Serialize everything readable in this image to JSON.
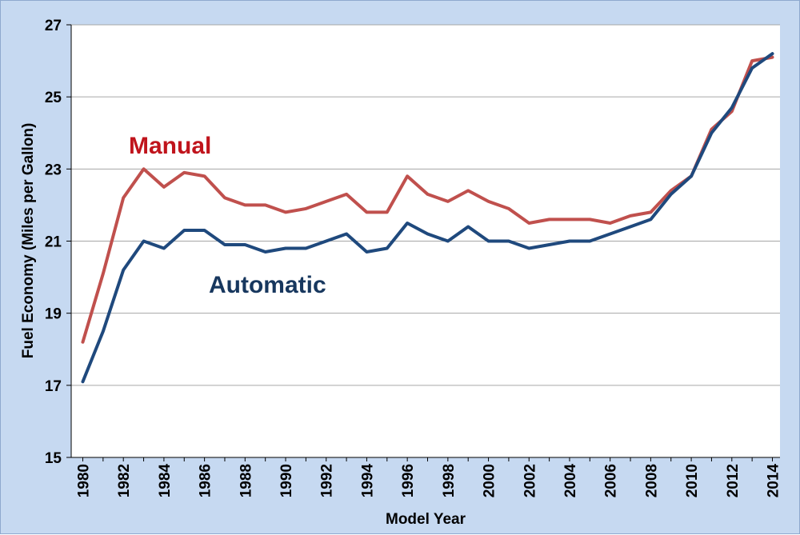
{
  "chart_data": {
    "type": "line",
    "title": "",
    "xlabel": "Model Year",
    "ylabel": "Fuel Economy (Miles per Gallon)",
    "ylim": [
      15,
      27
    ],
    "yticks": [
      "15",
      "17",
      "19",
      "21",
      "23",
      "25",
      "27"
    ],
    "xlim": [
      1980,
      2014
    ],
    "xticks": [
      "1980",
      "1982",
      "1984",
      "1986",
      "1988",
      "1990",
      "1992",
      "1994",
      "1996",
      "1998",
      "2000",
      "2002",
      "2004",
      "2006",
      "2008",
      "2010",
      "2012",
      "2014"
    ],
    "grid": true,
    "x": [
      1980,
      1981,
      1982,
      1983,
      1984,
      1985,
      1986,
      1987,
      1988,
      1989,
      1990,
      1991,
      1992,
      1993,
      1994,
      1995,
      1996,
      1997,
      1998,
      1999,
      2000,
      2001,
      2002,
      2003,
      2004,
      2005,
      2006,
      2007,
      2008,
      2009,
      2010,
      2011,
      2012,
      2013,
      2014
    ],
    "series": [
      {
        "name": "Manual",
        "color": "#c0504d",
        "label_color": "#c0141c",
        "values": [
          18.2,
          20.1,
          22.2,
          23.0,
          22.5,
          22.9,
          22.8,
          22.2,
          22.0,
          22.0,
          21.8,
          21.9,
          22.1,
          22.3,
          21.8,
          21.8,
          22.8,
          22.3,
          22.1,
          22.4,
          22.1,
          21.9,
          21.5,
          21.6,
          21.6,
          21.6,
          21.5,
          21.7,
          21.8,
          22.4,
          22.8,
          24.1,
          24.6,
          26.0,
          26.1
        ]
      },
      {
        "name": "Automatic",
        "color": "#1f497d",
        "label_color": "#17375e",
        "values": [
          17.1,
          18.5,
          20.2,
          21.0,
          20.8,
          21.3,
          21.3,
          20.9,
          20.9,
          20.7,
          20.8,
          20.8,
          21.0,
          21.2,
          20.7,
          20.8,
          21.5,
          21.2,
          21.0,
          21.4,
          21.0,
          21.0,
          20.8,
          20.9,
          21.0,
          21.0,
          21.2,
          21.4,
          21.6,
          22.3,
          22.8,
          24.0,
          24.7,
          25.8,
          26.2
        ]
      }
    ]
  }
}
